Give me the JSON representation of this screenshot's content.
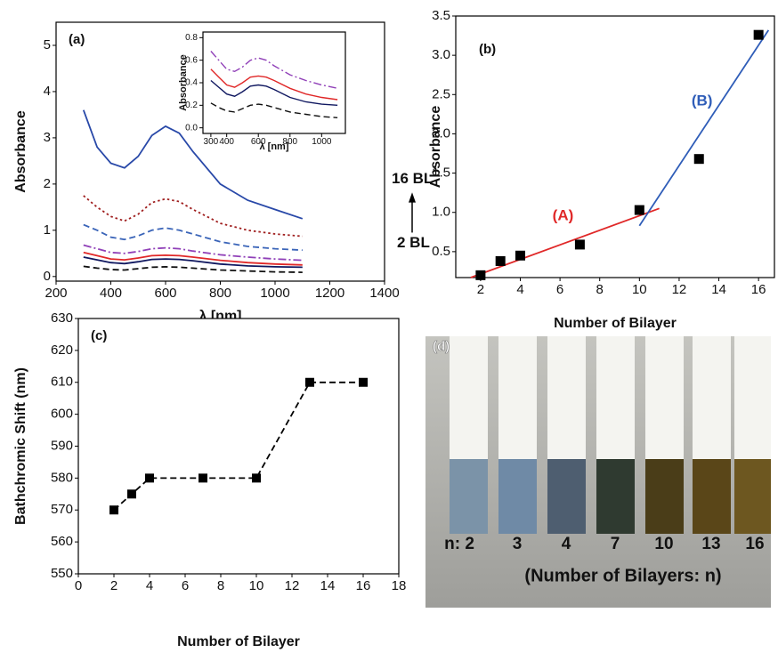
{
  "chart_data": [
    {
      "type": "line",
      "panel_label": "(a)",
      "xlabel": "λ [nm]",
      "ylabel": "Absorbance",
      "x": [
        300,
        350,
        400,
        450,
        500,
        550,
        600,
        650,
        700,
        800,
        900,
        1000,
        1100
      ],
      "series": [
        {
          "color": "#2848a8",
          "style": "solid",
          "values": [
            3.6,
            2.8,
            2.45,
            2.35,
            2.6,
            3.05,
            3.25,
            3.1,
            2.7,
            2.0,
            1.65,
            1.45,
            1.25
          ]
        },
        {
          "color": "#a02020",
          "style": "dotted",
          "values": [
            1.75,
            1.5,
            1.3,
            1.2,
            1.35,
            1.6,
            1.68,
            1.62,
            1.45,
            1.15,
            1.0,
            0.92,
            0.87
          ]
        },
        {
          "color": "#3a64b8",
          "style": "dashed",
          "values": [
            1.12,
            1.0,
            0.85,
            0.8,
            0.88,
            1.0,
            1.05,
            1.0,
            0.92,
            0.75,
            0.65,
            0.6,
            0.57
          ]
        },
        {
          "color": "#9040b8",
          "style": "dashdot",
          "values": [
            0.68,
            0.6,
            0.52,
            0.5,
            0.54,
            0.6,
            0.62,
            0.6,
            0.55,
            0.47,
            0.42,
            0.38,
            0.35
          ]
        },
        {
          "color": "#e02828",
          "style": "solid",
          "values": [
            0.52,
            0.45,
            0.38,
            0.36,
            0.4,
            0.45,
            0.46,
            0.45,
            0.42,
            0.35,
            0.3,
            0.27,
            0.25
          ]
        },
        {
          "color": "#101860",
          "style": "solid",
          "values": [
            0.42,
            0.36,
            0.3,
            0.28,
            0.32,
            0.37,
            0.38,
            0.37,
            0.34,
            0.27,
            0.23,
            0.21,
            0.2
          ]
        },
        {
          "color": "#101010",
          "style": "dashed",
          "values": [
            0.22,
            0.18,
            0.15,
            0.14,
            0.17,
            0.2,
            0.21,
            0.2,
            0.18,
            0.14,
            0.12,
            0.1,
            0.09
          ]
        }
      ],
      "xlim": [
        200,
        1400
      ],
      "xticks": [
        200,
        400,
        600,
        800,
        1000,
        1200,
        1400
      ],
      "ylim": [
        -0.1,
        5.5
      ],
      "yticks": [
        0,
        1,
        2,
        3,
        4,
        5
      ],
      "annotations": [
        "16 BL",
        "2 BL"
      ],
      "inset": {
        "xlabel": "λ [nm]",
        "ylabel": "Absorbance",
        "xlim": [
          250,
          1150
        ],
        "xticks": [
          300,
          400,
          600,
          800,
          1000
        ],
        "ylim": [
          -0.05,
          0.85
        ],
        "yticks": [
          {
            "value": 0,
            "label": "0.0"
          },
          0.2,
          0.4,
          0.6,
          0.8
        ]
      }
    },
    {
      "type": "scatter",
      "panel_label": "(b)",
      "xlabel": "Number of Bilayer",
      "ylabel": "Absorbance",
      "x": [
        2,
        3,
        4,
        7,
        10,
        13,
        16
      ],
      "values": [
        0.2,
        0.38,
        0.45,
        0.59,
        1.03,
        1.68,
        3.26
      ],
      "color": "#000000",
      "fits": [
        {
          "name": "(A)",
          "color": "#e02828",
          "x": [
            1.5,
            11
          ],
          "values": [
            0.17,
            1.05
          ]
        },
        {
          "name": "(B)",
          "color": "#2f5db8",
          "x": [
            10,
            16.5
          ],
          "values": [
            0.83,
            3.32
          ]
        }
      ],
      "xlim": [
        0.75,
        16.8
      ],
      "xticks": [
        2,
        4,
        6,
        8,
        10,
        12,
        14,
        16
      ],
      "ylim": [
        0.17,
        3.5
      ],
      "yticks": [
        0.5,
        {
          "value": 1,
          "label": "1.0"
        },
        1.5,
        {
          "value": 2,
          "label": "2.0"
        },
        2.5,
        {
          "value": 3,
          "label": "3.0"
        },
        3.5
      ]
    },
    {
      "type": "line",
      "panel_label": "(c)",
      "xlabel": "Number of Bilayer",
      "ylabel": "Bathchromic Shift (nm)",
      "x": [
        2,
        3,
        4,
        7,
        10,
        13,
        16
      ],
      "series": [
        {
          "color": "#000000",
          "style": "dashed",
          "markers": true,
          "values": [
            570,
            575,
            580,
            580,
            580,
            610,
            610
          ]
        }
      ],
      "xlim": [
        0,
        18
      ],
      "xticks": [
        0,
        2,
        4,
        6,
        8,
        10,
        12,
        14,
        16,
        18
      ],
      "ylim": [
        550,
        630
      ],
      "yticks": [
        550,
        560,
        570,
        580,
        590,
        600,
        610,
        620,
        630
      ]
    }
  ],
  "photo": {
    "panel_label": "(d)",
    "sample_labels": [
      "n: 2",
      "3",
      "4",
      "7",
      "10",
      "13",
      "16"
    ],
    "caption": "(Number of Bilayers: n)"
  }
}
